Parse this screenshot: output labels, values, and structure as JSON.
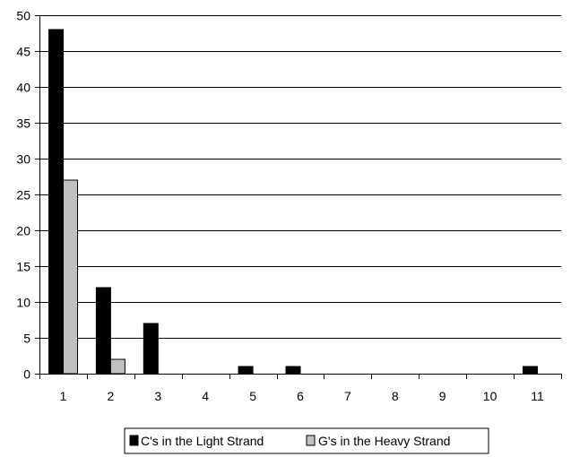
{
  "chart_data": {
    "type": "bar",
    "title": "",
    "xlabel": "",
    "ylabel": "",
    "categories": [
      "1",
      "2",
      "3",
      "4",
      "5",
      "6",
      "7",
      "8",
      "9",
      "10",
      "11"
    ],
    "series": [
      {
        "name": "C's in the Light Strand",
        "color": "#000000",
        "values": [
          48,
          12,
          7,
          0,
          1,
          1,
          0,
          0,
          0,
          0,
          1
        ]
      },
      {
        "name": "G's in the Heavy Strand",
        "color": "#c0c0c0",
        "values": [
          27,
          2,
          0,
          0,
          0,
          0,
          0,
          0,
          0,
          0,
          0
        ]
      }
    ],
    "ylim": [
      0,
      50
    ],
    "yticks": [
      0,
      5,
      10,
      15,
      20,
      25,
      30,
      35,
      40,
      45,
      50
    ],
    "grid": true,
    "legend_position": "bottom"
  }
}
